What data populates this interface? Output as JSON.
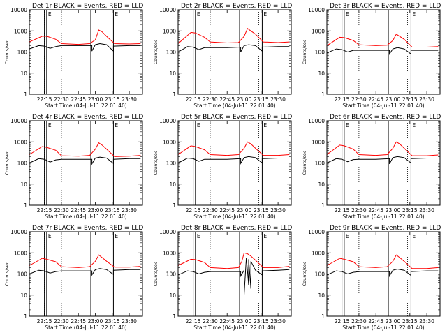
{
  "chart_data": [
    {
      "type": "line",
      "title": "Det 1r BLACK = Events, RED = LLD",
      "ylabel": "Counts/sec",
      "xlabel": "Start Time (04-Jul-11 22:01:40)",
      "x_ticks": [
        "22:15",
        "22:30",
        "22:45",
        "23:00",
        "23:15",
        "23:30"
      ],
      "y_ticks": [
        "1",
        "10",
        "100",
        "1000",
        "10000"
      ],
      "y_scale": "log",
      "ylim": [
        1,
        10000
      ],
      "x_range": [
        "22:01:40",
        "23:41:40"
      ],
      "series": [
        {
          "color": "#ff0000",
          "x": [
            "22:01:40",
            "22:13",
            "22:17",
            "22:25",
            "22:30",
            "22:45",
            "22:55",
            "23:00",
            "23:03",
            "23:06",
            "23:10",
            "23:17",
            "23:30",
            "23:40"
          ],
          "values": [
            300,
            560,
            560,
            400,
            250,
            230,
            250,
            380,
            1100,
            900,
            550,
            250,
            240,
            250
          ]
        },
        {
          "color": "#000000",
          "x": [
            "22:01:40",
            "22:10",
            "22:15",
            "22:20",
            "22:25",
            "22:30",
            "22:45",
            "22:57",
            "22:57",
            "23:00",
            "23:04",
            "23:10",
            "23:16",
            "23:16",
            "23:30",
            "23:40"
          ],
          "values": [
            140,
            200,
            190,
            150,
            180,
            200,
            200,
            200,
            110,
            220,
            250,
            220,
            110,
            190,
            200,
            200
          ]
        }
      ],
      "markers": [
        "22:15",
        "22:17",
        "22:56",
        "23:16"
      ],
      "gaps": [
        "22:15",
        "22:30",
        "23:13"
      ],
      "saa_labels": [
        "E",
        "E"
      ]
    },
    {
      "type": "line",
      "title": "Det 2r BLACK = Events, RED = LLD",
      "ylabel": "Counts/sec",
      "xlabel": "Start Time (04-Jul-11 22:01:40)",
      "x_ticks": [
        "22:15",
        "22:30",
        "22:45",
        "23:00",
        "23:15",
        "23:30"
      ],
      "y_ticks": [
        "1",
        "10",
        "100",
        "1000",
        "10000"
      ],
      "y_scale": "log",
      "ylim": [
        1,
        10000
      ],
      "x_range": [
        "22:01:40",
        "23:41:40"
      ],
      "series": [
        {
          "color": "#ff0000",
          "x": [
            "22:01:40",
            "22:13",
            "22:17",
            "22:25",
            "22:30",
            "22:45",
            "22:55",
            "23:00",
            "23:03",
            "23:06",
            "23:10",
            "23:17",
            "23:30",
            "23:40"
          ],
          "values": [
            250,
            850,
            800,
            500,
            300,
            270,
            280,
            550,
            1300,
            1000,
            700,
            300,
            280,
            300
          ]
        },
        {
          "color": "#000000",
          "x": [
            "22:01:40",
            "22:10",
            "22:15",
            "22:20",
            "22:25",
            "22:30",
            "22:45",
            "22:57",
            "22:57",
            "23:00",
            "23:04",
            "23:10",
            "23:16",
            "23:16",
            "23:30",
            "23:40"
          ],
          "values": [
            100,
            180,
            170,
            130,
            160,
            160,
            160,
            170,
            100,
            200,
            220,
            200,
            110,
            170,
            180,
            180
          ]
        }
      ],
      "markers": [
        "22:15",
        "22:17",
        "22:56",
        "23:16"
      ],
      "gaps": [
        "22:15",
        "22:30",
        "23:13"
      ],
      "saa_labels": [
        "E",
        "E"
      ]
    },
    {
      "type": "line",
      "title": "Det 3r BLACK = Events, RED = LLD",
      "ylabel": "Counts/sec",
      "xlabel": "Start Time (04-Jul-11 22:01:40)",
      "x_ticks": [
        "22:15",
        "22:30",
        "22:45",
        "23:00",
        "23:15",
        "23:30"
      ],
      "y_ticks": [
        "1",
        "10",
        "100",
        "1000",
        "10000"
      ],
      "y_scale": "log",
      "ylim": [
        1,
        10000
      ],
      "x_range": [
        "22:01:40",
        "23:41:40"
      ],
      "series": [
        {
          "color": "#ff0000",
          "x": [
            "22:01:40",
            "22:13",
            "22:17",
            "22:25",
            "22:30",
            "22:45",
            "22:55",
            "23:00",
            "23:03",
            "23:06",
            "23:10",
            "23:17",
            "23:30",
            "23:40"
          ],
          "values": [
            200,
            500,
            480,
            350,
            220,
            200,
            210,
            350,
            700,
            550,
            400,
            170,
            170,
            180
          ]
        },
        {
          "color": "#000000",
          "x": [
            "22:01:40",
            "22:10",
            "22:15",
            "22:20",
            "22:25",
            "22:30",
            "22:45",
            "22:57",
            "22:57",
            "23:00",
            "23:04",
            "23:10",
            "23:16",
            "23:16",
            "23:30",
            "23:40"
          ],
          "values": [
            90,
            140,
            130,
            100,
            120,
            120,
            120,
            120,
            80,
            140,
            160,
            140,
            80,
            120,
            120,
            120
          ]
        }
      ],
      "markers": [
        "22:15",
        "22:17",
        "22:56",
        "23:16"
      ],
      "gaps": [
        "22:15",
        "22:30",
        "23:13"
      ],
      "saa_labels": [
        "E",
        "E"
      ]
    },
    {
      "type": "line",
      "title": "Det 4r BLACK = Events, RED = LLD",
      "ylabel": "Counts/sec",
      "xlabel": "Start Time (04-Jul-11 22:01:40)",
      "x_ticks": [
        "22:15",
        "22:30",
        "22:45",
        "23:00",
        "23:15",
        "23:30"
      ],
      "y_ticks": [
        "1",
        "10",
        "100",
        "1000",
        "10000"
      ],
      "y_scale": "log",
      "ylim": [
        1,
        10000
      ],
      "x_range": [
        "22:01:40",
        "23:41:40"
      ],
      "series": [
        {
          "color": "#ff0000",
          "x": [
            "22:01:40",
            "22:13",
            "22:17",
            "22:25",
            "22:30",
            "22:45",
            "22:55",
            "23:00",
            "23:03",
            "23:06",
            "23:10",
            "23:17",
            "23:30",
            "23:40"
          ],
          "values": [
            250,
            600,
            550,
            400,
            220,
            210,
            230,
            450,
            900,
            700,
            450,
            200,
            210,
            230
          ]
        },
        {
          "color": "#000000",
          "x": [
            "22:01:40",
            "22:10",
            "22:15",
            "22:20",
            "22:25",
            "22:30",
            "22:45",
            "22:57",
            "22:57",
            "23:00",
            "23:04",
            "23:10",
            "23:16",
            "23:16",
            "23:30",
            "23:40"
          ],
          "values": [
            100,
            160,
            150,
            110,
            140,
            150,
            150,
            150,
            90,
            170,
            190,
            170,
            95,
            150,
            160,
            160
          ]
        }
      ],
      "markers": [
        "22:15",
        "22:17",
        "22:56",
        "23:16"
      ],
      "gaps": [
        "22:15",
        "22:30",
        "23:13"
      ],
      "saa_labels": [
        "E",
        "E"
      ]
    },
    {
      "type": "line",
      "title": "Det 5r BLACK = Events, RED = LLD",
      "ylabel": "Counts/sec",
      "xlabel": "Start Time (04-Jul-11 22:01:40)",
      "x_ticks": [
        "22:15",
        "22:30",
        "22:45",
        "23:00",
        "23:15",
        "23:30"
      ],
      "y_ticks": [
        "1",
        "10",
        "100",
        "1000",
        "10000"
      ],
      "y_scale": "log",
      "ylim": [
        1,
        10000
      ],
      "x_range": [
        "22:01:40",
        "23:41:40"
      ],
      "series": [
        {
          "color": "#ff0000",
          "x": [
            "22:01:40",
            "22:13",
            "22:17",
            "22:25",
            "22:30",
            "22:45",
            "22:55",
            "23:00",
            "23:03",
            "23:06",
            "23:10",
            "23:17",
            "23:30",
            "23:40"
          ],
          "values": [
            250,
            650,
            600,
            420,
            250,
            230,
            250,
            500,
            1000,
            800,
            500,
            230,
            230,
            250
          ]
        },
        {
          "color": "#000000",
          "x": [
            "22:01:40",
            "22:10",
            "22:15",
            "22:20",
            "22:25",
            "22:30",
            "22:45",
            "22:57",
            "22:57",
            "23:00",
            "23:04",
            "23:10",
            "23:16",
            "23:16",
            "23:30",
            "23:40"
          ],
          "values": [
            100,
            170,
            160,
            120,
            150,
            150,
            150,
            160,
            95,
            180,
            200,
            180,
            100,
            160,
            170,
            170
          ]
        }
      ],
      "markers": [
        "22:15",
        "22:17",
        "22:56",
        "23:16"
      ],
      "gaps": [
        "22:15",
        "22:30",
        "23:13"
      ],
      "saa_labels": [
        "E",
        "E"
      ]
    },
    {
      "type": "line",
      "title": "Det 6r BLACK = Events, RED = LLD",
      "ylabel": "Counts/sec",
      "xlabel": "Start Time (04-Jul-11 22:01:40)",
      "x_ticks": [
        "22:15",
        "22:30",
        "22:45",
        "23:00",
        "23:15",
        "23:30"
      ],
      "y_ticks": [
        "1",
        "10",
        "100",
        "1000",
        "10000"
      ],
      "y_scale": "log",
      "ylim": [
        1,
        10000
      ],
      "x_range": [
        "22:01:40",
        "23:41:40"
      ],
      "series": [
        {
          "color": "#ff0000",
          "x": [
            "22:01:40",
            "22:13",
            "22:17",
            "22:25",
            "22:30",
            "22:45",
            "22:55",
            "23:00",
            "23:03",
            "23:06",
            "23:10",
            "23:17",
            "23:30",
            "23:40"
          ],
          "values": [
            250,
            700,
            650,
            450,
            250,
            230,
            250,
            500,
            1000,
            800,
            500,
            220,
            220,
            240
          ]
        },
        {
          "color": "#000000",
          "x": [
            "22:01:40",
            "22:10",
            "22:15",
            "22:20",
            "22:25",
            "22:30",
            "22:45",
            "22:57",
            "22:57",
            "23:00",
            "23:04",
            "23:10",
            "23:16",
            "23:16",
            "23:30",
            "23:40"
          ],
          "values": [
            100,
            160,
            150,
            115,
            145,
            150,
            150,
            160,
            90,
            180,
            200,
            180,
            100,
            160,
            170,
            170
          ]
        }
      ],
      "markers": [
        "22:15",
        "22:17",
        "22:56",
        "23:16"
      ],
      "gaps": [
        "22:15",
        "22:30",
        "23:13"
      ],
      "saa_labels": [
        "E",
        "E"
      ]
    },
    {
      "type": "line",
      "title": "Det 7r BLACK = Events, RED = LLD",
      "ylabel": "Counts/sec",
      "xlabel": "Start Time (04-Jul-11 22:01:40)",
      "x_ticks": [
        "22:15",
        "22:30",
        "22:45",
        "23:00",
        "23:15",
        "23:30"
      ],
      "y_ticks": [
        "1",
        "10",
        "100",
        "1000",
        "10000"
      ],
      "y_scale": "log",
      "ylim": [
        1,
        10000
      ],
      "x_range": [
        "22:01:40",
        "23:41:40"
      ],
      "series": [
        {
          "color": "#ff0000",
          "x": [
            "22:01:40",
            "22:13",
            "22:17",
            "22:25",
            "22:30",
            "22:45",
            "22:55",
            "23:00",
            "23:03",
            "23:06",
            "23:10",
            "23:17",
            "23:30",
            "23:40"
          ],
          "values": [
            250,
            550,
            500,
            380,
            220,
            200,
            220,
            400,
            800,
            600,
            400,
            210,
            210,
            230
          ]
        },
        {
          "color": "#000000",
          "x": [
            "22:01:40",
            "22:10",
            "22:15",
            "22:20",
            "22:25",
            "22:30",
            "22:45",
            "22:57",
            "22:57",
            "23:00",
            "23:04",
            "23:10",
            "23:16",
            "23:16",
            "23:30",
            "23:40"
          ],
          "values": [
            100,
            150,
            140,
            110,
            130,
            140,
            140,
            140,
            90,
            160,
            180,
            160,
            95,
            150,
            160,
            160
          ]
        }
      ],
      "markers": [
        "22:15",
        "22:17",
        "22:56",
        "23:16"
      ],
      "gaps": [
        "22:15",
        "22:30",
        "23:13"
      ],
      "saa_labels": [
        "E",
        "E"
      ]
    },
    {
      "type": "line",
      "title": "Det 8r BLACK = Events, RED = LLD",
      "ylabel": "Counts/sec",
      "xlabel": "Start Time (04-Jul-11 22:01:40)",
      "x_ticks": [
        "22:15",
        "22:30",
        "22:45",
        "23:00",
        "23:15",
        "23:30"
      ],
      "y_ticks": [
        "1",
        "10",
        "100",
        "1000",
        "10000"
      ],
      "y_scale": "log",
      "ylim": [
        1,
        10000
      ],
      "x_range": [
        "22:01:40",
        "23:41:40"
      ],
      "series": [
        {
          "color": "#ff0000",
          "x": [
            "22:01:40",
            "22:13",
            "22:17",
            "22:25",
            "22:30",
            "22:45",
            "22:55",
            "22:58",
            "23:00",
            "23:03",
            "23:06",
            "23:10",
            "23:17",
            "23:30",
            "23:40"
          ],
          "values": [
            250,
            500,
            480,
            350,
            200,
            180,
            200,
            400,
            1000,
            900,
            700,
            450,
            200,
            200,
            230
          ]
        },
        {
          "color": "#000000",
          "x": [
            "22:01:40",
            "22:10",
            "22:15",
            "22:20",
            "22:25",
            "22:30",
            "22:45",
            "22:57",
            "22:57",
            "23:00",
            "23:00",
            "23:02",
            "23:02",
            "23:04",
            "23:04",
            "23:06",
            "23:06",
            "23:10",
            "23:16",
            "23:16",
            "23:30",
            "23:40"
          ],
          "values": [
            90,
            140,
            130,
            100,
            120,
            130,
            130,
            130,
            80,
            150,
            10,
            600,
            600,
            30,
            500,
            20,
            400,
            150,
            90,
            140,
            150,
            160
          ]
        }
      ],
      "markers": [
        "22:15",
        "22:17",
        "22:56",
        "23:16"
      ],
      "gaps": [
        "22:15",
        "22:30",
        "23:13"
      ],
      "saa_labels": [
        "E",
        "E"
      ]
    },
    {
      "type": "line",
      "title": "Det 9r BLACK = Events, RED = LLD",
      "ylabel": "Counts/sec",
      "xlabel": "Start Time (04-Jul-11 22:01:40)",
      "x_ticks": [
        "22:15",
        "22:30",
        "22:45",
        "23:00",
        "23:15",
        "23:30"
      ],
      "y_ticks": [
        "1",
        "10",
        "100",
        "1000",
        "10000"
      ],
      "y_scale": "log",
      "ylim": [
        1,
        10000
      ],
      "x_range": [
        "22:01:40",
        "23:41:40"
      ],
      "series": [
        {
          "color": "#ff0000",
          "x": [
            "22:01:40",
            "22:13",
            "22:17",
            "22:25",
            "22:30",
            "22:45",
            "22:55",
            "23:00",
            "23:03",
            "23:06",
            "23:10",
            "23:17",
            "23:30",
            "23:40"
          ],
          "values": [
            250,
            550,
            500,
            380,
            220,
            200,
            220,
            400,
            800,
            600,
            400,
            180,
            180,
            200
          ]
        },
        {
          "color": "#000000",
          "x": [
            "22:01:40",
            "22:10",
            "22:15",
            "22:20",
            "22:25",
            "22:30",
            "22:45",
            "22:57",
            "22:57",
            "23:00",
            "23:04",
            "23:10",
            "23:16",
            "23:16",
            "23:30",
            "23:40"
          ],
          "values": [
            90,
            140,
            130,
            100,
            120,
            130,
            130,
            130,
            80,
            150,
            170,
            150,
            85,
            130,
            140,
            140
          ]
        }
      ],
      "markers": [
        "22:15",
        "22:17",
        "22:56",
        "23:16"
      ],
      "gaps": [
        "22:15",
        "22:30",
        "23:13"
      ],
      "saa_labels": [
        "E",
        "E"
      ]
    }
  ]
}
